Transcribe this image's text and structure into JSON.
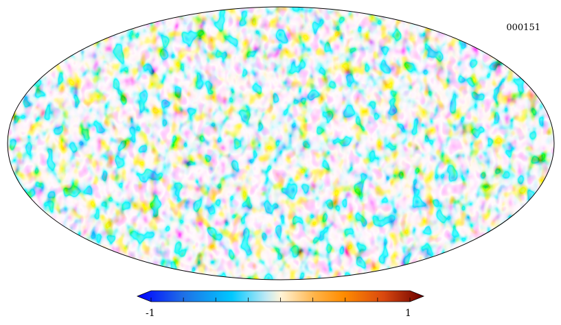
{
  "map": {
    "projection": "mollweide",
    "identifier": "000151",
    "colormap": "planck",
    "colors": [
      "#0000ff",
      "#1f6fe6",
      "#00c8ff",
      "#bfe9f5",
      "#fff4d8",
      "#ffb347",
      "#ff8c00",
      "#d9480f",
      "#6b0000"
    ]
  },
  "colorbar": {
    "min_label": "-1",
    "max_label": "1",
    "range": [
      -1,
      1
    ],
    "ticks": 9
  }
}
